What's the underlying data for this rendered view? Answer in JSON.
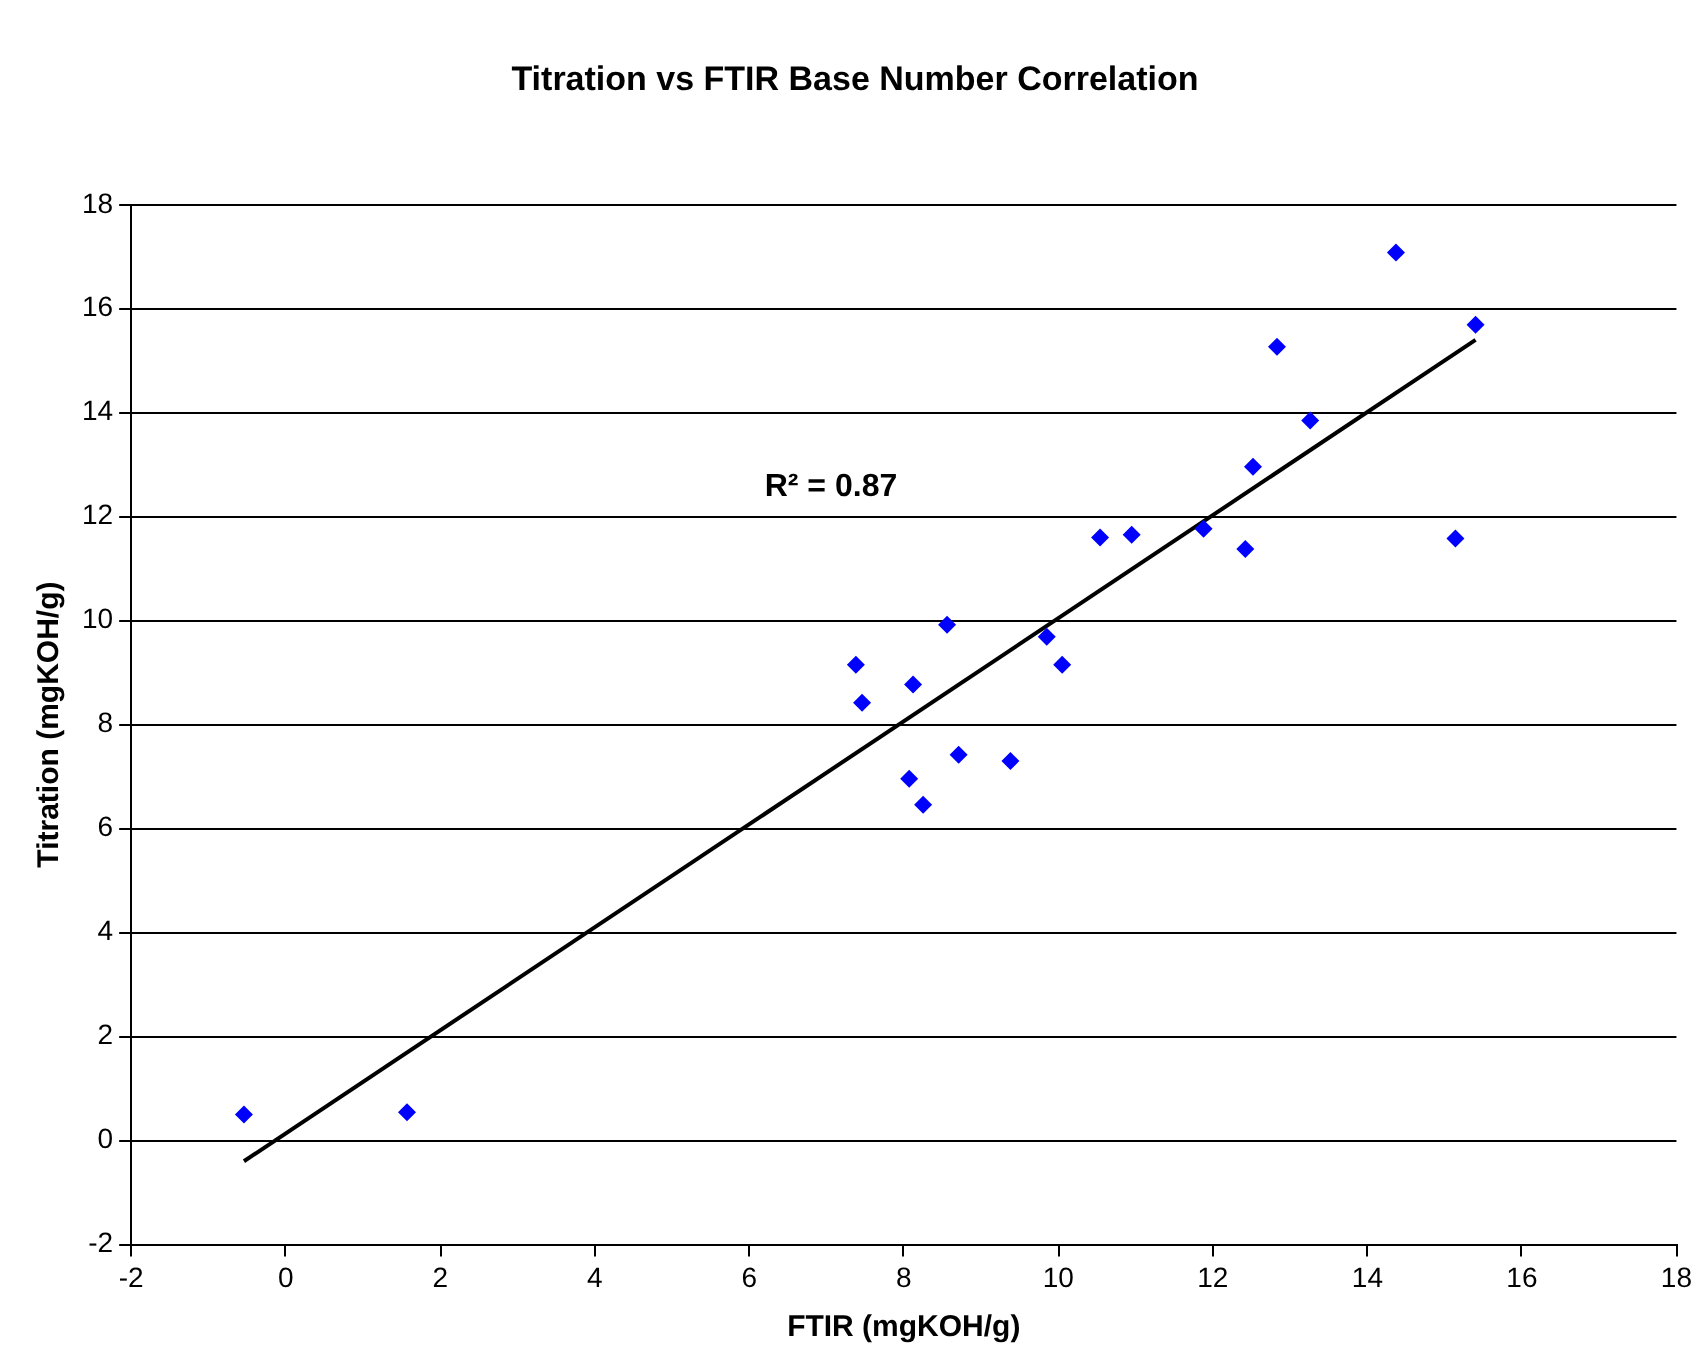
{
  "chart_data": {
    "type": "scatter",
    "title": "Titration vs FTIR Base Number Correlation",
    "xlabel": "FTIR (mgKOH/g)",
    "ylabel": "Titration (mgKOH/g)",
    "series": [
      {
        "type": "scatter",
        "color": "#0000ff",
        "marker": "diamond",
        "x": [
          -0.54,
          1.57,
          7.38,
          7.46,
          8.12,
          8.07,
          8.25,
          8.56,
          8.71,
          9.38,
          9.85,
          10.05,
          10.54,
          10.95,
          11.88,
          12.42,
          12.52,
          12.83,
          13.26,
          14.37,
          15.14,
          15.4
        ],
        "values": [
          0.5,
          0.54,
          9.15,
          8.42,
          8.77,
          6.96,
          6.46,
          9.92,
          7.42,
          7.3,
          9.69,
          9.15,
          11.6,
          11.65,
          11.77,
          11.38,
          12.96,
          15.27,
          13.85,
          17.08,
          11.58,
          15.69
        ]
      },
      {
        "type": "line",
        "color": "#000000",
        "marker": "none",
        "x": [
          -0.54,
          15.4
        ],
        "values": [
          -0.4,
          15.4
        ]
      }
    ],
    "xlim": [
      -2,
      18
    ],
    "xticks": [
      -2,
      0,
      2,
      4,
      6,
      8,
      10,
      12,
      14,
      16,
      18
    ],
    "ylim": [
      -2,
      18
    ],
    "yticks": [
      -2,
      0,
      2,
      4,
      6,
      8,
      10,
      12,
      14,
      16,
      18
    ],
    "grid": "y",
    "legend": false,
    "annotations": [
      "R² = 0.87"
    ]
  }
}
